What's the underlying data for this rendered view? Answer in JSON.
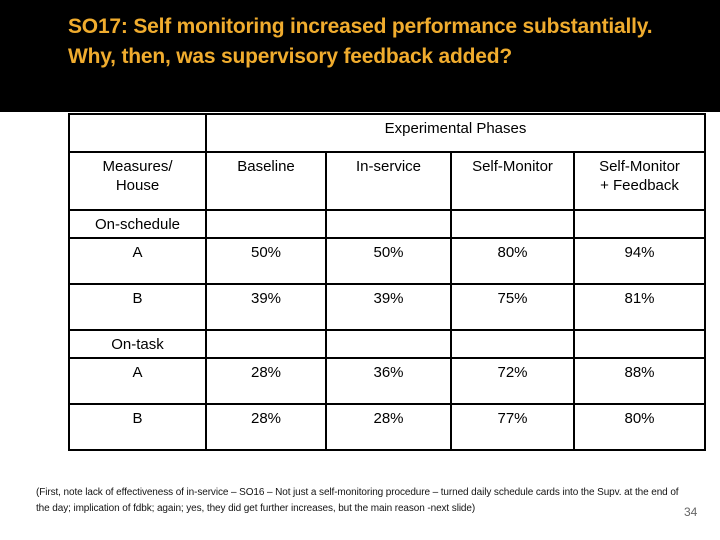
{
  "slide": {
    "title": "SO17: Self monitoring increased performance substantially.\nWhy, then, was supervisory feedback added?",
    "footnote": "(First, note lack of effectiveness of in-service – SO16 – Not just a self-monitoring procedure – turned daily schedule cards into the Supv. at the end of the day; implication of fdbk; again; yes, they did get further increases, but the main reason -next slide)",
    "page_number": "34"
  },
  "colors": {
    "header_bg": "#000000",
    "title_text": "#F0AC2E",
    "highlight": "#ECA80E",
    "table_border": "#000000",
    "page_number": "#666666"
  },
  "table": {
    "span_header": "Experimental Phases",
    "corner_header": "Measures/\nHouse",
    "phase_columns": [
      "Baseline",
      "In-service",
      "Self-Monitor",
      "Self-Monitor\n+ Feedback"
    ],
    "highlight_columns": [
      1,
      2
    ],
    "sections": [
      {
        "label": "On-schedule",
        "rows": [
          {
            "label": "A",
            "values": [
              "50%",
              "50%",
              "80%",
              "94%"
            ]
          },
          {
            "label": "B",
            "values": [
              "39%",
              "39%",
              "75%",
              "81%"
            ]
          }
        ]
      },
      {
        "label": "On-task",
        "rows": [
          {
            "label": "A",
            "values": [
              "28%",
              "36%",
              "72%",
              "88%"
            ]
          },
          {
            "label": "B",
            "values": [
              "28%",
              "28%",
              "77%",
              "80%"
            ]
          }
        ]
      }
    ]
  }
}
